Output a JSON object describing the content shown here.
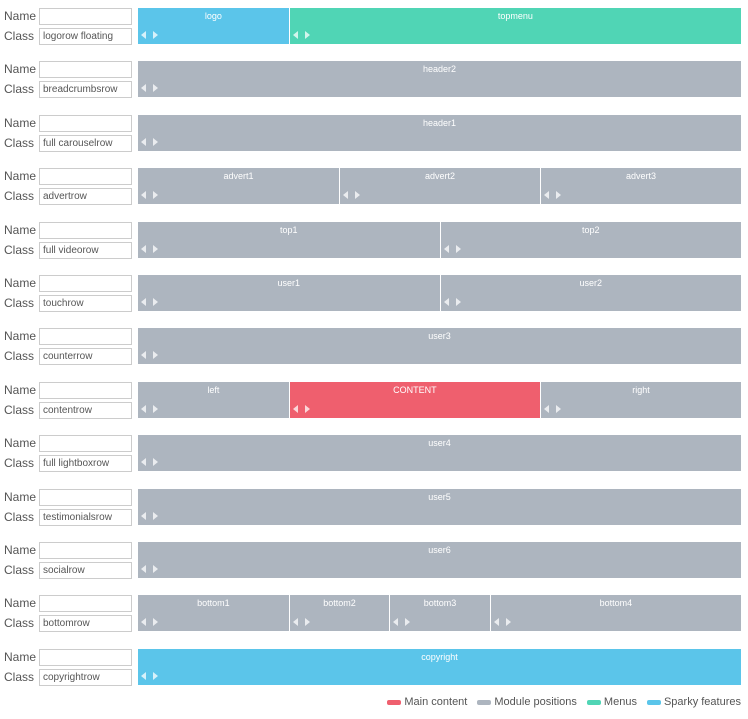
{
  "rows": [
    {
      "name_label": "Name",
      "class_label": "Class",
      "class": "logorow floating",
      "cells": [
        {
          "label": "logo",
          "color": "#5bc5ea"
        },
        {
          "label": "topmenu",
          "color": "#50d5b5"
        }
      ]
    },
    {
      "name_label": "Name",
      "class_label": "Class",
      "class": "breadcrumbsrow",
      "cells": [
        {
          "label": "header2",
          "color": "#adb5bf"
        }
      ]
    },
    {
      "name_label": "Name",
      "class_label": "Class",
      "class": "full carouselrow",
      "cells": [
        {
          "label": "header1",
          "color": "#adb5bf"
        }
      ]
    },
    {
      "name_label": "Name",
      "class_label": "Class",
      "class": "advertrow",
      "cells": [
        {
          "label": "advert1",
          "color": "#adb5bf"
        },
        {
          "label": "advert2",
          "color": "#adb5bf"
        },
        {
          "label": "advert3",
          "color": "#adb5bf"
        }
      ]
    },
    {
      "name_label": "Name",
      "class_label": "Class",
      "class": "full videorow",
      "cells": [
        {
          "label": "top1",
          "color": "#adb5bf"
        },
        {
          "label": "top2",
          "color": "#adb5bf"
        }
      ]
    },
    {
      "name_label": "Name",
      "class_label": "Class",
      "class": "touchrow",
      "cells": [
        {
          "label": "user1",
          "color": "#adb5bf"
        },
        {
          "label": "user2",
          "color": "#adb5bf"
        }
      ]
    },
    {
      "name_label": "Name",
      "class_label": "Class",
      "class": "counterrow",
      "cells": [
        {
          "label": "user3",
          "color": "#adb5bf"
        }
      ]
    },
    {
      "name_label": "Name",
      "class_label": "Class",
      "class": "contentrow",
      "cells": [
        {
          "label": "left",
          "color": "#adb5bf"
        },
        {
          "label": "CONTENT",
          "color": "#ef5f6e"
        },
        {
          "label": "right",
          "color": "#adb5bf"
        }
      ]
    },
    {
      "name_label": "Name",
      "class_label": "Class",
      "class": "full lightboxrow",
      "cells": [
        {
          "label": "user4",
          "color": "#adb5bf"
        }
      ]
    },
    {
      "name_label": "Name",
      "class_label": "Class",
      "class": "testimonialsrow",
      "cells": [
        {
          "label": "user5",
          "color": "#adb5bf"
        }
      ]
    },
    {
      "name_label": "Name",
      "class_label": "Class",
      "class": "socialrow",
      "cells": [
        {
          "label": "user6",
          "color": "#adb5bf"
        }
      ]
    },
    {
      "name_label": "Name",
      "class_label": "Class",
      "class": "bottomrow",
      "cells": [
        {
          "label": "bottom1",
          "color": "#adb5bf"
        },
        {
          "label": "bottom2",
          "color": "#adb5bf"
        },
        {
          "label": "bottom3",
          "color": "#adb5bf"
        },
        {
          "label": "bottom4",
          "color": "#adb5bf"
        }
      ]
    },
    {
      "name_label": "Name",
      "class_label": "Class",
      "class": "copyrightrow",
      "cells": [
        {
          "label": "copyright",
          "color": "#5bc5ea"
        }
      ]
    }
  ],
  "legend": [
    {
      "label": "Main content",
      "color": "#ef5f6e"
    },
    {
      "label": "Module positions",
      "color": "#adb5bf"
    },
    {
      "label": "Menus",
      "color": "#50d5b5"
    },
    {
      "label": "Sparky features",
      "color": "#5bc5ea"
    }
  ]
}
